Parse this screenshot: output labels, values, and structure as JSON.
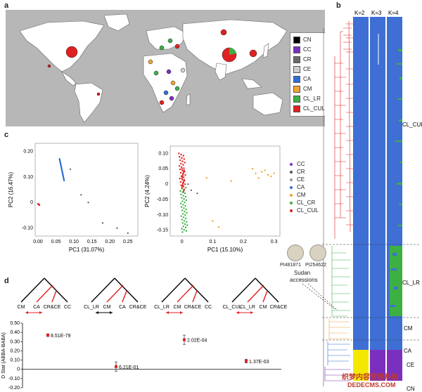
{
  "panel_labels": {
    "a": "a",
    "b": "b",
    "c": "c",
    "d": "d"
  },
  "colors": {
    "CN": "#000000",
    "CC": "#7b2fbe",
    "CR": "#6b6b6b",
    "CE": "#cfcfcf",
    "CA": "#2f6fd1",
    "CM": "#f0a330",
    "CL_LR": "#3cb043",
    "CL_CUL": "#e02020",
    "yellow": "#f5e800",
    "purple": "#7b2fbe",
    "blue": "#3f6fd4"
  },
  "map_legend": [
    "CN",
    "CC",
    "CR",
    "CE",
    "CA",
    "CM",
    "CL_LR",
    "CL_CUL"
  ],
  "pca_legend": [
    "CC",
    "CR",
    "CE",
    "CA",
    "CM",
    "CL_CR",
    "CL_CUL"
  ],
  "pca_legend_colors": [
    "#7b2fbe",
    "#555555",
    "#9a9a9a",
    "#2f6fd1",
    "#f0a330",
    "#3cb043",
    "#e02020"
  ],
  "admixture": {
    "headers": [
      "K=2",
      "K=3",
      "K=4"
    ]
  },
  "tree_labels": {
    "cl_cul": "CL_CUL",
    "cl_lr": "CL_LR",
    "cm": "CM",
    "ca": "CA",
    "ce": "CE",
    "cn": "CN"
  },
  "sudan": {
    "acc1": "PI481871",
    "acc2": "PI254622",
    "caption1": "Sudan",
    "caption2": "accessions"
  },
  "pca1": {
    "xlabel": "PC1 (31.07%)",
    "ylabel": "PC2 (16.47%)",
    "xticks": [
      "0.00",
      "0.05",
      "0.10",
      "0.15",
      "0.20",
      "0.25"
    ],
    "yticks": [
      "0.20",
      "0.10",
      "0",
      "-0.10"
    ]
  },
  "pca2": {
    "xlabel": "PC1 (15.10%)",
    "ylabel": "PC2 (4.24%)",
    "xticks": [
      "0",
      "0.1",
      "0.2",
      "0.3"
    ],
    "yticks": [
      "0.10",
      "0.05",
      "0",
      "-0.05",
      "-0.10",
      "-0.15"
    ]
  },
  "trees": [
    {
      "leaves": [
        "CM",
        "CA",
        "CR&CE",
        "CC"
      ]
    },
    {
      "leaves": [
        "CL_LR",
        "CM",
        "CA",
        "CR&CE"
      ]
    },
    {
      "leaves": [
        "CL_LR",
        "CM",
        "CR&CE",
        "CC"
      ]
    },
    {
      "leaves": [
        "CL_CUL",
        "CL_LR",
        "CM",
        "CR&CE"
      ]
    }
  ],
  "dstat": {
    "ylabel": "D Stat (ABBA-BABA)",
    "yticks": [
      "0.50",
      "0.40",
      "0.30",
      "0.20",
      "0.10",
      "0",
      "-0.10",
      "-0.20"
    ],
    "ylim": [
      -0.2,
      0.5
    ]
  },
  "chart_data": [
    {
      "type": "bar",
      "categories": [
        "CM-CA-CR&CE-CC",
        "CL_LR-CM-CA-CR&CE",
        "CL_LR-CM-CR&CE-CC",
        "CL_CUL-CL_LR-CM-CR&CE"
      ],
      "values": [
        0.37,
        0.03,
        0.32,
        0.09
      ],
      "errors": [
        0.015,
        0.05,
        0.05,
        0.02
      ],
      "labels": [
        "8.51E-79",
        "6.21E-01",
        "2.02E-04",
        "1.37E-03"
      ],
      "ylabel": "D Stat (ABBA-BABA)",
      "ylim": [
        -0.2,
        0.5
      ]
    }
  ],
  "watermark": {
    "line1": "织梦内容管理系统",
    "line2": "DEDECMS.COM"
  }
}
